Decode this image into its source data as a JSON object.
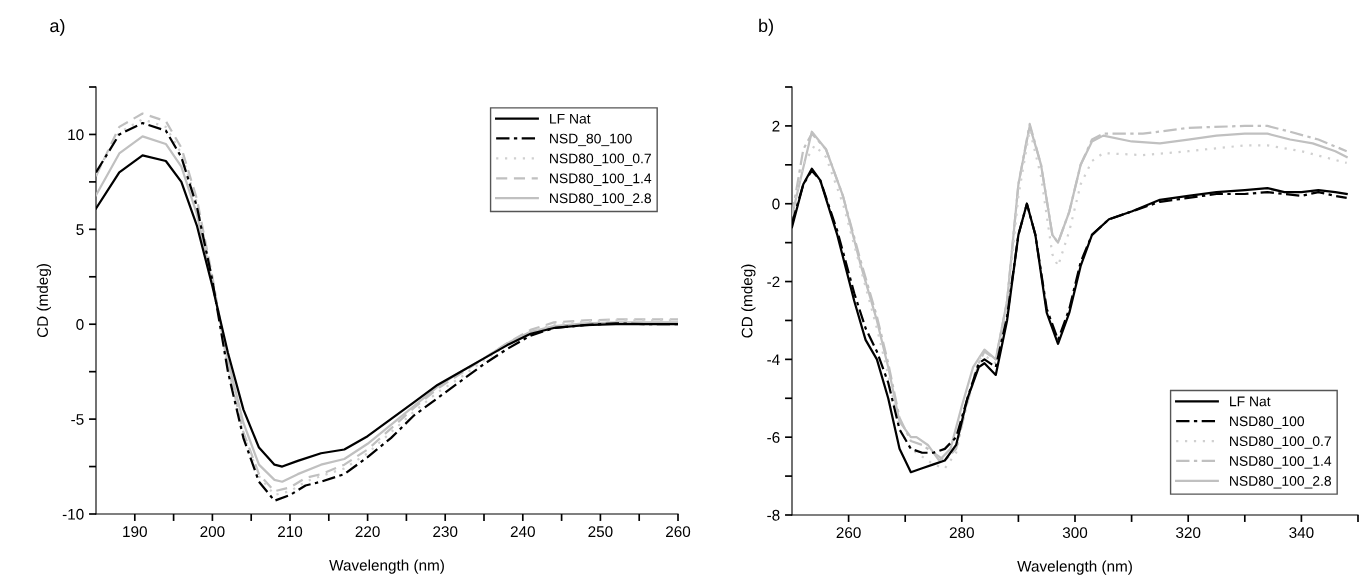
{
  "chart_data": [
    {
      "type": "line",
      "title": "a)",
      "xlabel": "Wavelength (nm)",
      "ylabel": "CD (mdeg)",
      "xlim": [
        185,
        260
      ],
      "xticks": [
        190,
        {
          "value": 195,
          "label": null
        },
        200,
        {
          "value": 205,
          "label": null
        },
        210,
        {
          "value": 215,
          "label": null
        },
        220,
        {
          "value": 225,
          "label": null
        },
        230,
        {
          "value": 235,
          "label": null
        },
        240,
        {
          "value": 245,
          "label": null
        },
        250,
        {
          "value": 255,
          "label": null
        },
        260
      ],
      "ylim": [
        -10,
        12.5
      ],
      "yticks": [
        -10,
        {
          "value": -7.5,
          "label": null
        },
        -5,
        {
          "value": -2.5,
          "label": null
        },
        0,
        {
          "value": 2.5,
          "label": null
        },
        5,
        {
          "value": 7.5,
          "label": null
        },
        10,
        {
          "value": 12.5,
          "label": null
        }
      ],
      "grid": false,
      "legend": "top right",
      "series": [
        {
          "name": "LF Nat",
          "color": "#000000",
          "line_style": "solid",
          "x": [
            185,
            188,
            191,
            194,
            196,
            198,
            200,
            202,
            204,
            206,
            208,
            209,
            211,
            214,
            217,
            220,
            223,
            226,
            229,
            232,
            235,
            238,
            241,
            244,
            248,
            252,
            256,
            260
          ],
          "values": [
            6.1,
            8.0,
            8.9,
            8.6,
            7.5,
            5.2,
            2.0,
            -1.5,
            -4.5,
            -6.5,
            -7.4,
            -7.5,
            -7.2,
            -6.8,
            -6.6,
            -5.9,
            -5.0,
            -4.1,
            -3.2,
            -2.5,
            -1.8,
            -1.1,
            -0.5,
            -0.2,
            -0.05,
            0.0,
            0.0,
            0.0
          ]
        },
        {
          "name": "NSD_80_100",
          "color": "#000000",
          "line_style": "dashdot",
          "x": [
            185,
            188,
            191,
            194,
            196,
            198,
            200,
            202,
            204,
            206,
            208,
            210,
            212,
            214,
            217,
            220,
            223,
            226,
            229,
            232,
            235,
            238,
            241,
            244,
            248,
            252,
            256,
            260
          ],
          "values": [
            8.0,
            10.0,
            10.6,
            10.2,
            8.8,
            6.2,
            2.3,
            -2.5,
            -6.0,
            -8.3,
            -9.3,
            -9.0,
            -8.5,
            -8.3,
            -7.9,
            -7.0,
            -6.0,
            -4.8,
            -3.9,
            -3.0,
            -2.1,
            -1.3,
            -0.6,
            -0.2,
            -0.05,
            0.05,
            0.0,
            0.0
          ]
        },
        {
          "name": "NSD80_100_0.7",
          "color": "#d0d0d0",
          "line_style": "dotted",
          "x": [
            185,
            188,
            191,
            194,
            196,
            198,
            200,
            202,
            204,
            206,
            208,
            210,
            212,
            214,
            217,
            220,
            223,
            226,
            229,
            232,
            235,
            238,
            241,
            244,
            248,
            252,
            256,
            260
          ],
          "values": [
            7.9,
            10.1,
            10.8,
            10.4,
            9.0,
            6.4,
            2.4,
            -2.3,
            -5.8,
            -8.0,
            -9.0,
            -8.8,
            -8.3,
            -8.0,
            -7.6,
            -6.8,
            -5.7,
            -4.6,
            -3.6,
            -2.8,
            -1.9,
            -1.1,
            -0.4,
            0.0,
            0.15,
            0.2,
            0.2,
            0.2
          ]
        },
        {
          "name": "NSD80_100_1.4",
          "color": "#c0c0c0",
          "line_style": "dashed",
          "x": [
            185,
            188,
            191,
            194,
            196,
            198,
            200,
            202,
            204,
            206,
            208,
            210,
            212,
            214,
            217,
            220,
            223,
            226,
            229,
            232,
            235,
            238,
            241,
            244,
            248,
            252,
            256,
            260
          ],
          "values": [
            7.8,
            10.4,
            11.1,
            10.7,
            9.3,
            6.6,
            2.5,
            -2.2,
            -5.7,
            -7.9,
            -8.8,
            -8.6,
            -8.1,
            -7.9,
            -7.4,
            -6.6,
            -5.5,
            -4.4,
            -3.4,
            -2.6,
            -1.8,
            -1.0,
            -0.3,
            0.1,
            0.2,
            0.25,
            0.25,
            0.25
          ]
        },
        {
          "name": "NSD80_100_2.8",
          "color": "#c0c0c0",
          "line_style": "solid",
          "x": [
            185,
            188,
            191,
            194,
            196,
            198,
            200,
            202,
            204,
            206,
            208,
            209,
            211,
            214,
            217,
            220,
            223,
            226,
            229,
            232,
            235,
            238,
            241,
            244,
            248,
            252,
            256,
            260
          ],
          "values": [
            6.8,
            9.0,
            9.9,
            9.5,
            8.3,
            5.8,
            2.2,
            -1.9,
            -5.2,
            -7.4,
            -8.2,
            -8.3,
            -7.9,
            -7.4,
            -7.1,
            -6.3,
            -5.3,
            -4.3,
            -3.3,
            -2.5,
            -1.8,
            -1.0,
            -0.4,
            -0.1,
            0.05,
            0.1,
            0.1,
            0.1
          ]
        }
      ]
    },
    {
      "type": "line",
      "title": "b)",
      "xlabel": "Wavelength (nm)",
      "ylabel": "CD (mdeg)",
      "xlim": [
        250,
        350
      ],
      "xticks": [
        260,
        {
          "value": 270,
          "label": null
        },
        280,
        {
          "value": 290,
          "label": null
        },
        300,
        {
          "value": 310,
          "label": null
        },
        320,
        {
          "value": 330,
          "label": null
        },
        340,
        {
          "value": 350,
          "label": null
        }
      ],
      "ylim": [
        -8,
        3
      ],
      "yticks": [
        -8,
        {
          "value": -7,
          "label": null
        },
        -6,
        {
          "value": -5,
          "label": null
        },
        -4,
        {
          "value": -3,
          "label": null
        },
        -2,
        {
          "value": -1,
          "label": null
        },
        0,
        {
          "value": 1,
          "label": null
        },
        2,
        {
          "value": 3,
          "label": null
        }
      ],
      "grid": false,
      "legend": "bottom right",
      "series": [
        {
          "name": "LF Nat",
          "color": "#000000",
          "line_style": "solid",
          "x": [
            250,
            252,
            253.5,
            255,
            258,
            261,
            263,
            265,
            267,
            269,
            271,
            273,
            275,
            277,
            279,
            281,
            283,
            284,
            286,
            288,
            290,
            291.5,
            293,
            295,
            297,
            299,
            301,
            303,
            306,
            310,
            315,
            320,
            325,
            330,
            334,
            337,
            340,
            343,
            346,
            348
          ],
          "values": [
            -0.6,
            0.5,
            0.9,
            0.6,
            -0.8,
            -2.5,
            -3.5,
            -4.0,
            -5.0,
            -6.3,
            -6.9,
            -6.8,
            -6.7,
            -6.6,
            -6.2,
            -5.0,
            -4.2,
            -4.1,
            -4.4,
            -3.0,
            -0.8,
            0.0,
            -0.8,
            -2.8,
            -3.6,
            -2.8,
            -1.6,
            -0.8,
            -0.4,
            -0.2,
            0.1,
            0.2,
            0.3,
            0.35,
            0.4,
            0.3,
            0.3,
            0.35,
            0.3,
            0.25
          ]
        },
        {
          "name": "NSD80_100",
          "color": "#000000",
          "line_style": "dashdot",
          "x": [
            250,
            252,
            253.5,
            255,
            258,
            261,
            263,
            265,
            267,
            269,
            271,
            273,
            275,
            277,
            279,
            281,
            283,
            284,
            286,
            288,
            290,
            291.5,
            293,
            295,
            297,
            299,
            301,
            303,
            306,
            310,
            315,
            320,
            325,
            330,
            334,
            337,
            340,
            343,
            346,
            348
          ],
          "values": [
            -0.5,
            0.5,
            0.85,
            0.6,
            -0.7,
            -2.3,
            -3.2,
            -3.8,
            -4.6,
            -5.8,
            -6.3,
            -6.4,
            -6.4,
            -6.3,
            -6.0,
            -5.0,
            -4.1,
            -4.0,
            -4.2,
            -2.9,
            -0.8,
            0.0,
            -0.8,
            -2.7,
            -3.5,
            -2.7,
            -1.5,
            -0.8,
            -0.4,
            -0.2,
            0.05,
            0.15,
            0.25,
            0.25,
            0.3,
            0.25,
            0.2,
            0.3,
            0.2,
            0.15
          ]
        },
        {
          "name": "NSD80_100_0.7",
          "color": "#d0d0d0",
          "line_style": "dotted",
          "x": [
            250,
            252,
            254,
            256,
            259,
            262,
            265,
            267,
            269,
            271,
            273,
            275,
            277,
            279,
            281,
            283,
            284,
            286,
            288,
            290,
            292,
            294,
            296,
            297,
            299,
            301,
            303,
            305,
            312,
            320,
            330,
            334,
            340,
            348
          ],
          "values": [
            -0.3,
            1.0,
            1.5,
            1.2,
            0.0,
            -1.6,
            -3.2,
            -4.4,
            -5.8,
            -6.3,
            -6.5,
            -6.7,
            -6.8,
            -6.4,
            -5.0,
            -4.0,
            -3.9,
            -4.1,
            -2.7,
            0.2,
            1.9,
            0.7,
            -1.3,
            -1.6,
            -0.7,
            0.5,
            1.1,
            1.3,
            1.25,
            1.35,
            1.5,
            1.5,
            1.35,
            1.05
          ]
        },
        {
          "name": "NSD80_100_1.4",
          "color": "#c0c0c0",
          "line_style": "dashdot",
          "x": [
            250,
            252,
            253.5,
            256,
            259,
            262,
            265,
            267,
            269,
            271,
            273,
            275,
            277,
            279,
            281,
            283,
            284,
            286,
            288,
            290,
            292,
            294,
            296,
            297,
            299,
            301,
            303,
            305,
            312,
            320,
            330,
            334,
            338,
            343,
            348
          ],
          "values": [
            -0.3,
            1.4,
            1.8,
            1.4,
            0.2,
            -1.4,
            -2.9,
            -4.1,
            -5.5,
            -6.1,
            -6.2,
            -6.4,
            -6.6,
            -6.3,
            -5.1,
            -4.1,
            -3.8,
            -4.0,
            -2.5,
            0.5,
            2.05,
            1.0,
            -0.8,
            -1.0,
            -0.2,
            1.0,
            1.65,
            1.8,
            1.8,
            1.95,
            2.0,
            2.0,
            1.85,
            1.65,
            1.35
          ]
        },
        {
          "name": "NSD80_100_2.8",
          "color": "#c0c0c0",
          "line_style": "solid",
          "x": [
            250,
            253.5,
            256,
            259,
            262,
            265,
            267,
            269,
            271,
            272,
            274,
            276,
            278,
            280,
            282,
            284,
            286,
            288,
            290,
            292,
            294,
            296,
            297,
            299,
            301,
            303,
            305,
            310,
            315,
            320,
            325,
            330,
            334,
            338,
            342,
            346,
            348
          ],
          "values": [
            -0.3,
            1.85,
            1.4,
            0.2,
            -1.5,
            -3.0,
            -4.2,
            -5.6,
            -6.0,
            -6.0,
            -6.2,
            -6.6,
            -6.3,
            -5.2,
            -4.2,
            -3.75,
            -4.0,
            -2.5,
            0.5,
            2.0,
            1.0,
            -0.8,
            -1.0,
            -0.2,
            1.0,
            1.6,
            1.75,
            1.6,
            1.55,
            1.65,
            1.75,
            1.8,
            1.8,
            1.65,
            1.55,
            1.35,
            1.2
          ]
        }
      ]
    }
  ]
}
